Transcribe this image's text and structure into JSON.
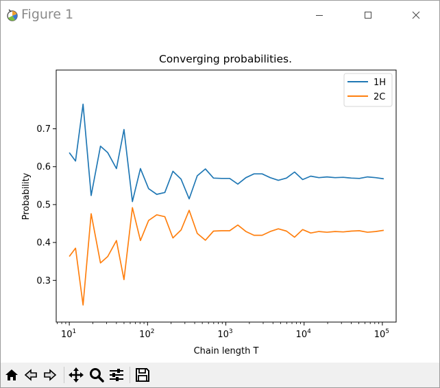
{
  "window": {
    "title": "Figure 1",
    "icons": [
      "matplotlib-icon",
      "minimize-icon",
      "maximize-icon",
      "close-icon"
    ]
  },
  "toolbar": {
    "buttons": [
      "home-icon",
      "back-icon",
      "forward-icon",
      "pan-icon",
      "zoom-icon",
      "configure-subplots-icon",
      "save-icon"
    ]
  },
  "colors": {
    "series_1": "#1f77b4",
    "series_2": "#ff7f0e"
  },
  "chart_data": {
    "type": "line",
    "title": "Converging probabilities.",
    "xlabel": "Chain length T",
    "ylabel": "Probability",
    "xscale": "log",
    "xlim": [
      6.8,
      150000
    ],
    "ylim": [
      0.19,
      0.855
    ],
    "xticks": [
      {
        "value": 10,
        "base": "10",
        "exp": "1"
      },
      {
        "value": 100,
        "base": "10",
        "exp": "2"
      },
      {
        "value": 1000,
        "base": "10",
        "exp": "3"
      },
      {
        "value": 10000,
        "base": "10",
        "exp": "4"
      },
      {
        "value": 100000,
        "base": "10",
        "exp": "5"
      }
    ],
    "yticks": [
      {
        "value": 0.3,
        "label": "0.3"
      },
      {
        "value": 0.4,
        "label": "0.4"
      },
      {
        "value": 0.5,
        "label": "0.5"
      },
      {
        "value": 0.6,
        "label": "0.6"
      },
      {
        "value": 0.7,
        "label": "0.7"
      }
    ],
    "grid": false,
    "legend": "upper right",
    "x": [
      10,
      12,
      15,
      19,
      25,
      31,
      40,
      50,
      64,
      81,
      103,
      131,
      166,
      211,
      268,
      340,
      431,
      548,
      695,
      882,
      1120,
      1422,
      1805,
      2291,
      2909,
      3692,
      4687,
      5950,
      7553,
      9589,
      12172,
      15452,
      19616,
      24902,
      31612,
      40131,
      50946,
      64674,
      82101,
      104224
    ],
    "series": [
      {
        "name": "1H",
        "values": [
          0.637,
          0.615,
          0.765,
          0.524,
          0.654,
          0.637,
          0.595,
          0.698,
          0.508,
          0.595,
          0.542,
          0.527,
          0.532,
          0.588,
          0.567,
          0.515,
          0.576,
          0.594,
          0.57,
          0.569,
          0.569,
          0.554,
          0.571,
          0.581,
          0.581,
          0.571,
          0.564,
          0.57,
          0.586,
          0.566,
          0.575,
          0.571,
          0.573,
          0.571,
          0.572,
          0.57,
          0.569,
          0.573,
          0.571,
          0.568
        ]
      },
      {
        "name": "2C",
        "values": [
          0.363,
          0.385,
          0.235,
          0.476,
          0.346,
          0.363,
          0.405,
          0.302,
          0.492,
          0.405,
          0.458,
          0.473,
          0.468,
          0.412,
          0.433,
          0.485,
          0.424,
          0.406,
          0.43,
          0.431,
          0.431,
          0.446,
          0.429,
          0.419,
          0.419,
          0.429,
          0.436,
          0.43,
          0.414,
          0.434,
          0.425,
          0.429,
          0.427,
          0.429,
          0.428,
          0.43,
          0.431,
          0.427,
          0.429,
          0.432
        ]
      }
    ]
  }
}
